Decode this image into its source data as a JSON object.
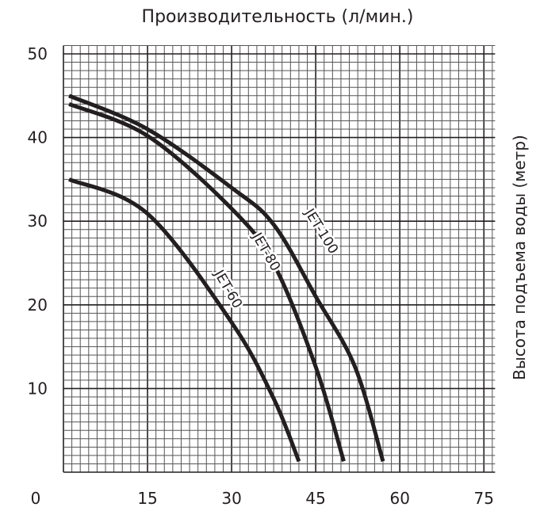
{
  "chart_data": {
    "type": "line",
    "title": "Производительность (л/мин.)",
    "xlabel": "",
    "ylabel": "Высота подъема воды (метр)",
    "xlim": [
      0,
      77
    ],
    "ylim": [
      0,
      51
    ],
    "x_ticks": [
      "0",
      "15",
      "30",
      "45",
      "60",
      "75"
    ],
    "x_tick_values": [
      0,
      15,
      30,
      45,
      60,
      75
    ],
    "y_ticks": [
      "10",
      "20",
      "30",
      "40",
      "50"
    ],
    "y_tick_values": [
      10,
      20,
      30,
      40,
      50
    ],
    "grid": true,
    "series": [
      {
        "name": "JET-100",
        "x": [
          1,
          15,
          30,
          37.5,
          45,
          52,
          57
        ],
        "y": [
          45,
          41,
          34,
          29.6,
          21,
          12.6,
          1.3
        ]
      },
      {
        "name": "JET-80",
        "x": [
          1,
          15,
          30,
          37.5,
          45,
          50
        ],
        "y": [
          44,
          40.2,
          31.5,
          24.9,
          12.6,
          1.3
        ]
      },
      {
        "name": "JET-60",
        "x": [
          1,
          15,
          30,
          37.5,
          42
        ],
        "y": [
          35,
          30.9,
          17.9,
          8.8,
          1.3
        ]
      }
    ],
    "line_color": "#231f20"
  }
}
